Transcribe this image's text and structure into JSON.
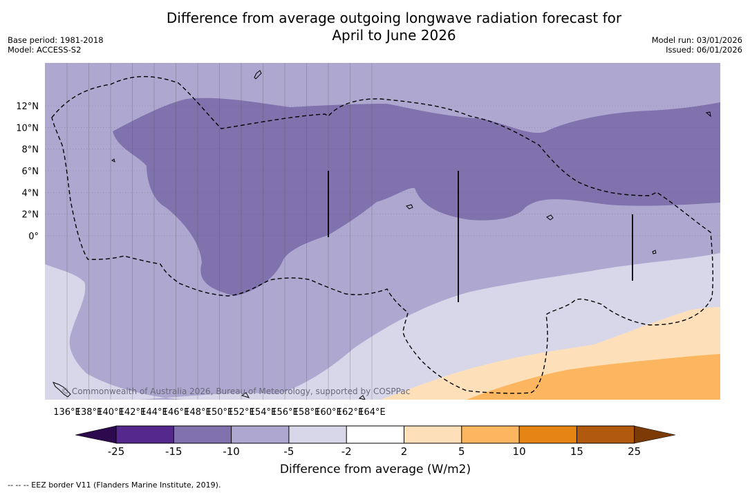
{
  "header": {
    "title_line1": "Difference from average outgoing longwave radiation forecast for",
    "title_line2": "April to June 2026",
    "base_period": "Base period: 1981-2018",
    "model": "Model: ACCESS-S2",
    "model_run": "Model run: 03/01/2026",
    "issued": "Issued: 06/01/2026"
  },
  "map": {
    "lon_ticks": [
      "136°E",
      "138°E",
      "140°E",
      "142°E",
      "144°E",
      "146°E",
      "148°E",
      "150°E",
      "152°E",
      "154°E",
      "156°E",
      "158°E",
      "160°E",
      "162°E",
      "164°E"
    ],
    "lat_ticks": [
      "12°N",
      "10°N",
      "8°N",
      "6°N",
      "4°N",
      "2°N",
      "0°"
    ],
    "watermark": "© Commonwealth of Australia 2026, Bureau of Meteorology, supported by COSPPac",
    "eez_line_style": "dashed"
  },
  "colorbar": {
    "title": "Difference from average (W/m2)",
    "labels": [
      "-25",
      "-15",
      "-10",
      "-5",
      "-2",
      "2",
      "5",
      "10",
      "15",
      "25"
    ],
    "colors": {
      "below_min": "#2d0a4d",
      "c1": "#54288c",
      "c2": "#7f72ad",
      "c3": "#aea8d1",
      "c4": "#d8d7e9",
      "c5": "#ffffff",
      "c6": "#fde0b9",
      "c7": "#fbb65f",
      "c8": "#e58513",
      "c9": "#b15a0e",
      "above_max": "#7c3b06"
    }
  },
  "footer": {
    "eez_note": "--  --  -- EEZ border V11 (Flanders Marine Institute, 2019)."
  }
}
